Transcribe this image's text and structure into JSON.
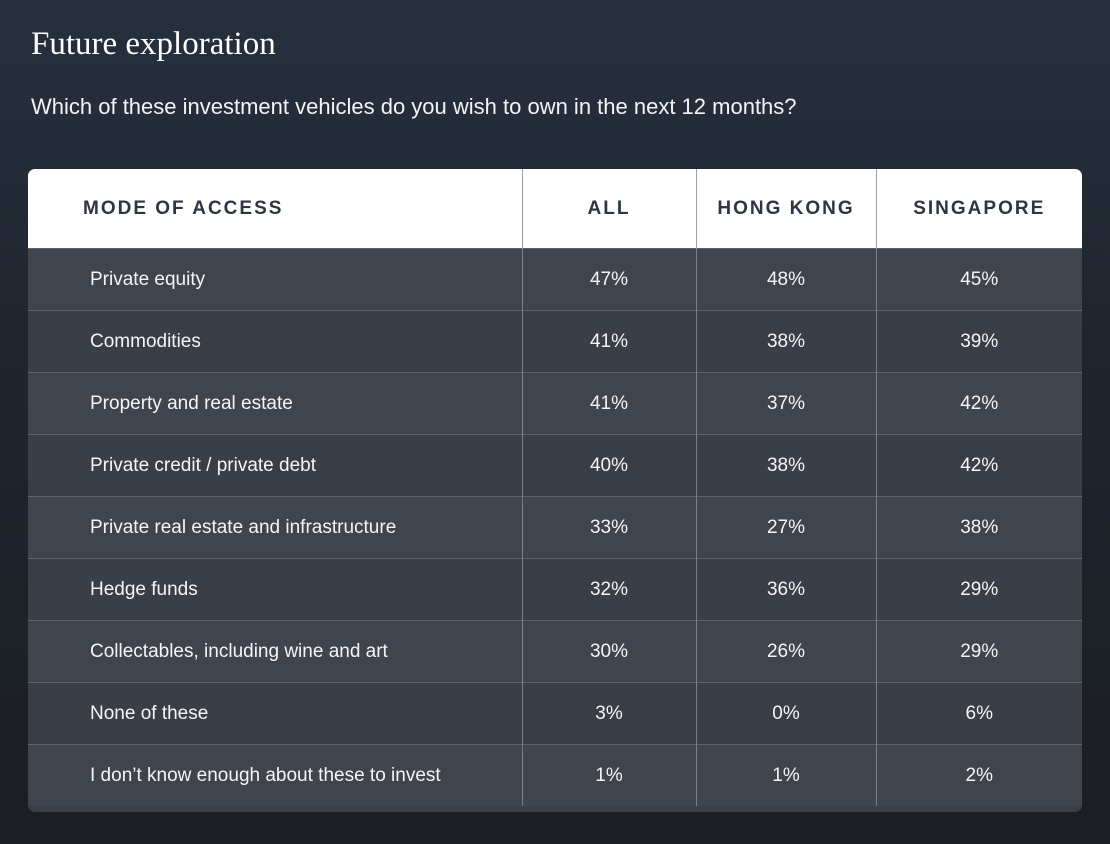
{
  "title": "Future exploration",
  "subtitle": "Which of these investment vehicles do you wish to own in the next 12 months?",
  "table": {
    "headers": [
      "MODE OF ACCESS",
      "ALL",
      "HONG KONG",
      "SINGAPORE"
    ],
    "rows": [
      [
        "Private equity",
        "47%",
        "48%",
        "45%"
      ],
      [
        "Commodities",
        "41%",
        "38%",
        "39%"
      ],
      [
        "Property and real estate",
        "41%",
        "37%",
        "42%"
      ],
      [
        "Private credit / private debt",
        "40%",
        "38%",
        "42%"
      ],
      [
        "Private real estate and infrastructure",
        "33%",
        "27%",
        "38%"
      ],
      [
        "Hedge funds",
        "32%",
        "36%",
        "29%"
      ],
      [
        "Collectables, including wine and art",
        "30%",
        "26%",
        "29%"
      ],
      [
        "None of these",
        "3%",
        "0%",
        "6%"
      ],
      [
        "I don’t know enough about these to invest",
        "1%",
        "1%",
        "2%"
      ]
    ]
  }
}
